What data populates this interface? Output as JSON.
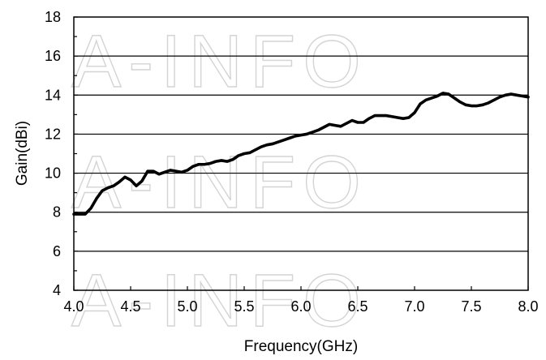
{
  "watermark": "A-INFO",
  "chart_data": {
    "type": "line",
    "title": "",
    "xlabel": "Frequency(GHz)",
    "ylabel": "Gain(dBi)",
    "xlim": [
      4.0,
      8.0
    ],
    "ylim": [
      4,
      18
    ],
    "x_ticks": [
      "4.0",
      "4.5",
      "5.0",
      "5.5",
      "6.0",
      "6.5",
      "7.0",
      "7.5",
      "8.0"
    ],
    "y_ticks": [
      "4",
      "6",
      "8",
      "10",
      "12",
      "14",
      "16",
      "18"
    ],
    "grid": "horizontal",
    "line_color": "#000000",
    "series": [
      {
        "x": [
          4.0,
          4.05,
          4.1,
          4.15,
          4.2,
          4.25,
          4.3,
          4.35,
          4.4,
          4.45,
          4.5,
          4.55,
          4.6,
          4.65,
          4.7,
          4.75,
          4.8,
          4.85,
          4.9,
          4.95,
          5.0,
          5.05,
          5.1,
          5.15,
          5.2,
          5.25,
          5.3,
          5.35,
          5.4,
          5.45,
          5.5,
          5.55,
          5.6,
          5.65,
          5.7,
          5.75,
          5.8,
          5.85,
          5.9,
          5.95,
          6.0,
          6.05,
          6.1,
          6.15,
          6.2,
          6.25,
          6.3,
          6.35,
          6.4,
          6.45,
          6.5,
          6.55,
          6.6,
          6.65,
          6.7,
          6.75,
          6.8,
          6.85,
          6.9,
          6.95,
          7.0,
          7.05,
          7.1,
          7.15,
          7.2,
          7.25,
          7.3,
          7.35,
          7.4,
          7.45,
          7.5,
          7.55,
          7.6,
          7.65,
          7.7,
          7.75,
          7.8,
          7.85,
          7.9,
          7.95,
          8.0
        ],
        "y": [
          7.9,
          7.9,
          7.9,
          8.2,
          8.7,
          9.1,
          9.25,
          9.35,
          9.55,
          9.8,
          9.65,
          9.35,
          9.6,
          10.1,
          10.1,
          9.95,
          10.05,
          10.15,
          10.1,
          10.05,
          10.15,
          10.35,
          10.45,
          10.45,
          10.5,
          10.6,
          10.65,
          10.6,
          10.7,
          10.9,
          11.0,
          11.05,
          11.2,
          11.35,
          11.45,
          11.5,
          11.6,
          11.7,
          11.8,
          11.9,
          11.95,
          12.0,
          12.1,
          12.2,
          12.35,
          12.5,
          12.45,
          12.4,
          12.55,
          12.7,
          12.6,
          12.6,
          12.8,
          12.95,
          12.95,
          12.95,
          12.9,
          12.85,
          12.8,
          12.85,
          13.1,
          13.55,
          13.75,
          13.85,
          13.95,
          14.1,
          14.05,
          13.85,
          13.65,
          13.5,
          13.45,
          13.45,
          13.5,
          13.6,
          13.75,
          13.9,
          14.0,
          14.05,
          14.0,
          13.95,
          13.9
        ]
      }
    ]
  }
}
